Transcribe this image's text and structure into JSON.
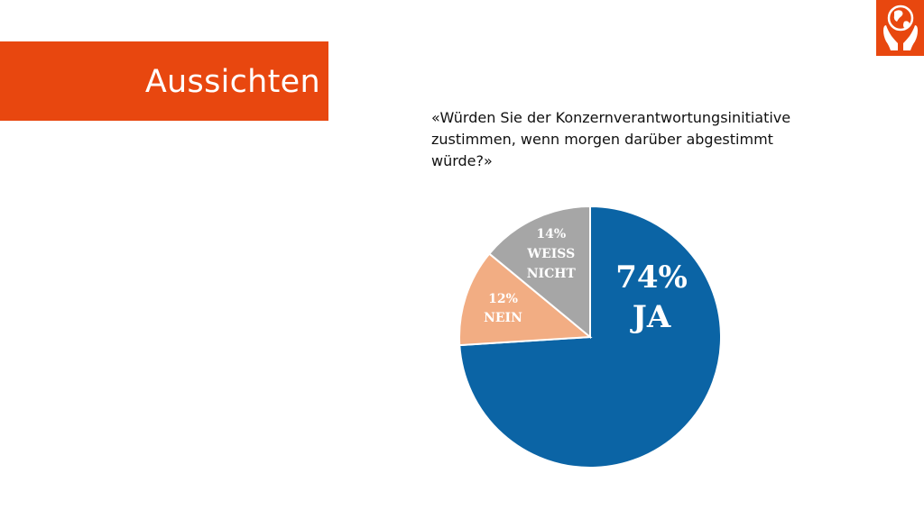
{
  "slide": {
    "title": "Aussichten",
    "question": "«Würden Sie der Konzernverantwortungsinitiative zustimmen, wenn morgen darüber abgestimmt würde?»",
    "logo_icon": "hands-holding-globe-icon"
  },
  "chart_data": {
    "type": "pie",
    "title": "",
    "start_angle_deg": 0,
    "direction": "clockwise",
    "slices": [
      {
        "label_lines": [
          "74%",
          "JA"
        ],
        "value": 74,
        "color": "#0b64a5"
      },
      {
        "label_lines": [
          "12%",
          "NEIN"
        ],
        "value": 12,
        "color": "#f2ad83"
      },
      {
        "label_lines": [
          "14%",
          "WEISS",
          "NICHT"
        ],
        "value": 14,
        "color": "#a6a6a6"
      }
    ]
  }
}
